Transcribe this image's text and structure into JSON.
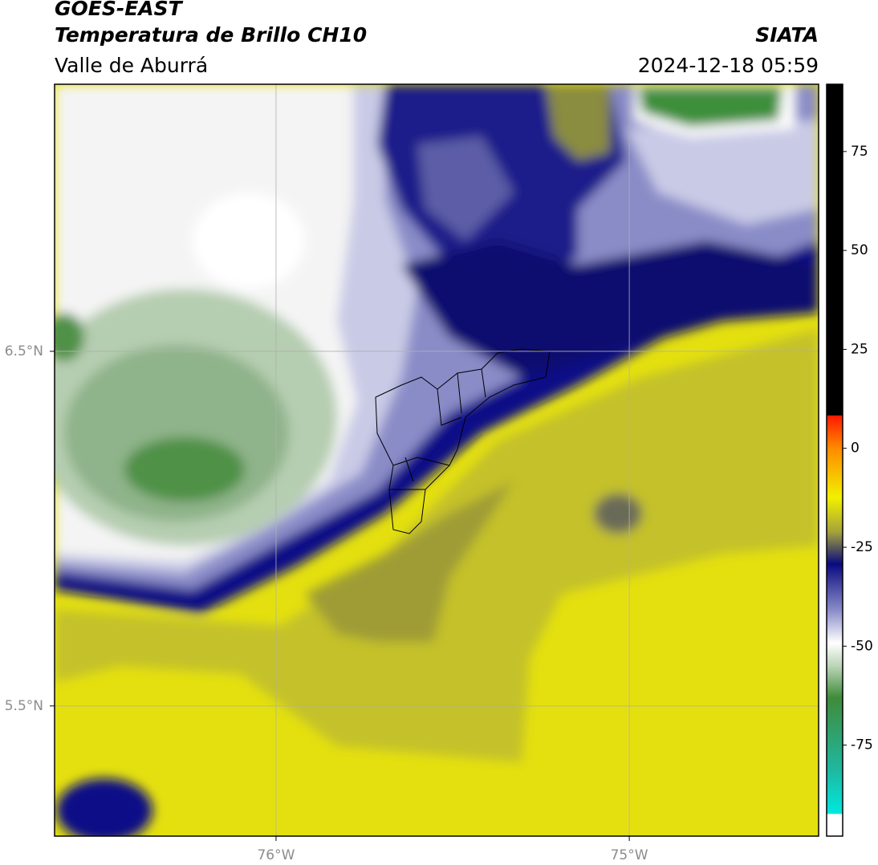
{
  "header": {
    "title": "GOES-EAST",
    "subtitle": "Temperatura de Brillo CH10",
    "region": "Valle de Aburrá",
    "source": "SIATA",
    "datetime": "2024-12-18 05:59"
  },
  "map": {
    "xlim": [
      -76.627,
      -74.464
    ],
    "ylim": [
      5.133,
      7.253
    ],
    "xticks": [
      {
        "value": -76,
        "label": "76°W"
      },
      {
        "value": -75,
        "label": "75°W"
      }
    ],
    "yticks": [
      {
        "value": 6.5,
        "label": "6.5°N"
      },
      {
        "value": 5.5,
        "label": "5.5°N"
      }
    ],
    "grid": true
  },
  "colorbar": {
    "lim": [
      -98,
      92
    ],
    "ticks": [
      75,
      50,
      25,
      0,
      -25,
      -50,
      -75
    ]
  }
}
